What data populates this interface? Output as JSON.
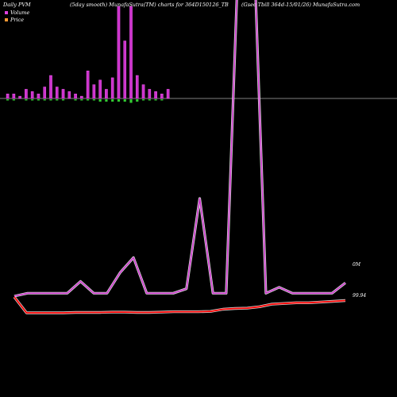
{
  "header": {
    "left": "Daily PVM",
    "center": "(5day smooth) MunafaSutra(TM) charts for 364D150126_TB",
    "right": "(Gsec Tbill 364d-15/01/26) MunafaSutra.com"
  },
  "legend": [
    {
      "label": "Volume",
      "color": "#e040e0"
    },
    {
      "label": "Price",
      "color": "#ff9933"
    }
  ],
  "chart_data": {
    "type": "line",
    "volume_bars": {
      "up": [
        2,
        2,
        1,
        4,
        3,
        2,
        5,
        10,
        5,
        4,
        3,
        2,
        1,
        12,
        6,
        8,
        4,
        9,
        40,
        25,
        40,
        10,
        6,
        4,
        3,
        2,
        4
      ],
      "down": [
        1,
        1,
        0,
        1,
        1,
        1,
        1,
        1,
        1,
        1,
        0,
        1,
        1,
        1,
        1,
        2,
        2,
        2,
        2,
        2,
        3,
        2,
        1,
        1,
        1,
        1,
        0
      ]
    },
    "volume_line": [
      99.9,
      100.1,
      100.1,
      100.1,
      100.1,
      100.9,
      100.1,
      100.1,
      101.5,
      102.5,
      100.1,
      100.1,
      100.1,
      100.4,
      106.5,
      100.1,
      100.1,
      125,
      126,
      100.1,
      100.5,
      100.1,
      100.1,
      100.1,
      100.1,
      100.8
    ],
    "price_line": [
      99.94,
      99.5,
      99.5,
      99.5,
      99.5,
      99.51,
      99.51,
      99.51,
      99.52,
      99.52,
      99.51,
      99.51,
      99.52,
      99.53,
      99.53,
      99.53,
      99.54,
      99.6,
      99.62,
      99.63,
      99.67,
      99.74,
      99.76,
      99.78,
      99.78,
      99.8,
      99.82,
      99.84
    ],
    "labels": {
      "volume_value": "0M",
      "price_value": "99.94"
    }
  }
}
